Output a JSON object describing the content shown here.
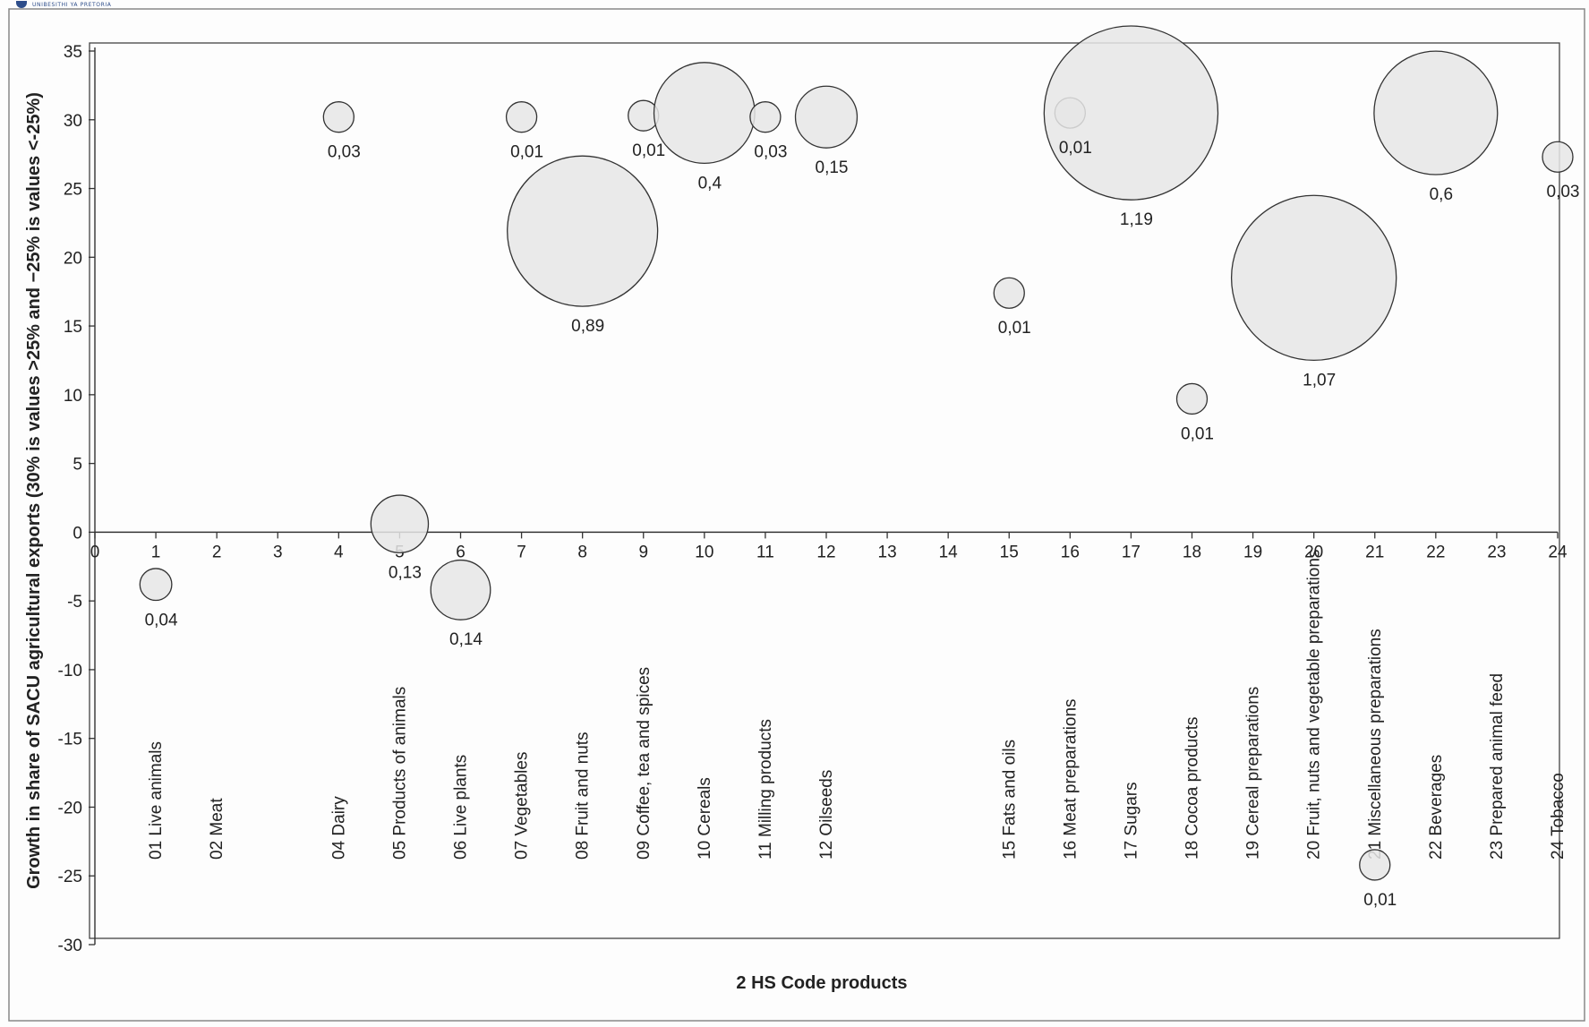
{
  "header": {
    "logo_text": "UNIBESITHI YA PRETORIA"
  },
  "chart_data": {
    "type": "scatter",
    "subtype": "bubble",
    "title": "",
    "xlabel": "2 HS Code products",
    "ylabel": "Growth in share of SACU agricultural exports (30% is values >25% and −25% is values <-25%)",
    "xlim": [
      0,
      24
    ],
    "ylim": [
      -30,
      35
    ],
    "x_ticks": [
      0,
      1,
      2,
      3,
      4,
      5,
      6,
      7,
      8,
      9,
      10,
      11,
      12,
      13,
      14,
      15,
      16,
      17,
      18,
      19,
      20,
      21,
      22,
      23,
      24
    ],
    "y_ticks": [
      35,
      30,
      25,
      20,
      15,
      10,
      5,
      0,
      -5,
      -10,
      -15,
      -20,
      -25,
      -30
    ],
    "grid": false,
    "legend": "none",
    "colors": {
      "bubble_fill": "#e6e6e6",
      "bubble_stroke": "#333333",
      "axis": "#333333"
    },
    "categories": [
      {
        "x": 1,
        "label": "01 Live animals"
      },
      {
        "x": 2,
        "label": "02 Meat"
      },
      {
        "x": 4,
        "label": "04 Dairy"
      },
      {
        "x": 5,
        "label": "05 Products of animals"
      },
      {
        "x": 6,
        "label": "06 Live plants"
      },
      {
        "x": 7,
        "label": "07 Vegetables"
      },
      {
        "x": 8,
        "label": "08 Fruit and nuts"
      },
      {
        "x": 9,
        "label": "09 Coffee, tea and spices"
      },
      {
        "x": 10,
        "label": "10 Cereals"
      },
      {
        "x": 11,
        "label": "11 Milling products"
      },
      {
        "x": 12,
        "label": "12 Oilseeds"
      },
      {
        "x": 15,
        "label": "15 Fats and oils"
      },
      {
        "x": 16,
        "label": "16 Meat preparations"
      },
      {
        "x": 17,
        "label": "17 Sugars"
      },
      {
        "x": 18,
        "label": "18 Cocoa products"
      },
      {
        "x": 19,
        "label": "19 Cereal preparations"
      },
      {
        "x": 20,
        "label": "20 Fruit, nuts and vegetable preparations"
      },
      {
        "x": 21,
        "label": "21 Miscellaneous preparations"
      },
      {
        "x": 22,
        "label": "22 Beverages"
      },
      {
        "x": 23,
        "label": "23 Prepared animal feed"
      },
      {
        "x": 24,
        "label": "24 Tobacco"
      }
    ],
    "points": [
      {
        "x": 1,
        "y": -3.8,
        "size": 0.04,
        "label": "0,04"
      },
      {
        "x": 4,
        "y": 30.2,
        "size": 0.03,
        "label": "0,03"
      },
      {
        "x": 5,
        "y": 0.6,
        "size": 0.13,
        "label": "0,13"
      },
      {
        "x": 6,
        "y": -4.2,
        "size": 0.14,
        "label": "0,14"
      },
      {
        "x": 7,
        "y": 30.2,
        "size": 0.01,
        "label": "0,01"
      },
      {
        "x": 8,
        "y": 21.9,
        "size": 0.89,
        "label": "0,89"
      },
      {
        "x": 9,
        "y": 30.3,
        "size": 0.01,
        "label": "0,01"
      },
      {
        "x": 10,
        "y": 30.5,
        "size": 0.4,
        "label": "0,4"
      },
      {
        "x": 11,
        "y": 30.2,
        "size": 0.03,
        "label": "0,03"
      },
      {
        "x": 12,
        "y": 30.2,
        "size": 0.15,
        "label": "0,15"
      },
      {
        "x": 15,
        "y": 17.4,
        "size": 0.01,
        "label": "0,01"
      },
      {
        "x": 16,
        "y": 30.5,
        "size": 0.01,
        "label": "0,01"
      },
      {
        "x": 17,
        "y": 30.5,
        "size": 1.19,
        "label": "1,19"
      },
      {
        "x": 18,
        "y": 9.7,
        "size": 0.01,
        "label": "0,01"
      },
      {
        "x": 20,
        "y": 18.5,
        "size": 1.07,
        "label": "1,07"
      },
      {
        "x": 21,
        "y": -24.2,
        "size": 0.01,
        "label": "0,01"
      },
      {
        "x": 22,
        "y": 30.5,
        "size": 0.6,
        "label": "0,6"
      },
      {
        "x": 24,
        "y": 27.3,
        "size": 0.03,
        "label": "0,03"
      }
    ]
  }
}
